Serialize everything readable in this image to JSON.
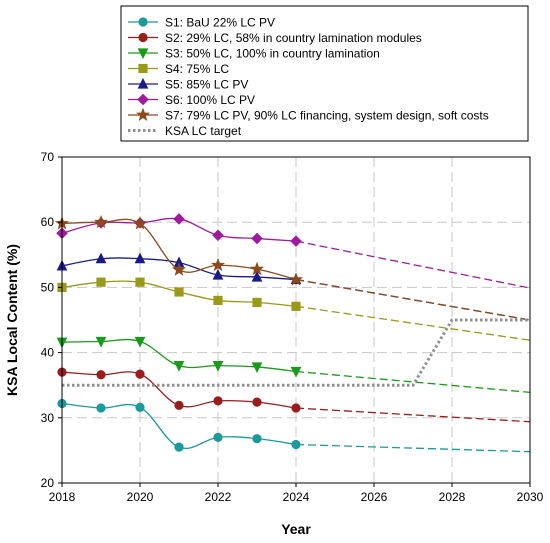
{
  "chart_data": {
    "type": "line",
    "title": "",
    "xlabel": "Year",
    "ylabel": "KSA Local Content (%)",
    "xlim": [
      2018,
      2030
    ],
    "ylim": [
      20,
      70
    ],
    "x_ticks": [
      "2018",
      "2020",
      "2022",
      "2024",
      "2026",
      "2028",
      "2030"
    ],
    "y_ticks": [
      "20",
      "30",
      "40",
      "50",
      "60",
      "70"
    ],
    "grid": true,
    "legend_position": "top",
    "series": [
      {
        "name": "S1: BaU 22% LC PV",
        "color": "#1a9a9a",
        "marker": "circle",
        "x": [
          2018,
          2019,
          2020,
          2021,
          2022,
          2023,
          2024
        ],
        "values": [
          32.2,
          31.5,
          31.6,
          25.5,
          27.0,
          26.8,
          25.9
        ],
        "projection": {
          "x": [
            2024,
            2030
          ],
          "values": [
            25.9,
            24.8
          ]
        }
      },
      {
        "name": "S2: 29% LC, 58% in country lamination modules",
        "color": "#9b1c1c",
        "marker": "circle",
        "x": [
          2018,
          2019,
          2020,
          2021,
          2022,
          2023,
          2024
        ],
        "values": [
          37.0,
          36.6,
          36.7,
          31.9,
          32.6,
          32.4,
          31.5
        ],
        "projection": {
          "x": [
            2024,
            2030
          ],
          "values": [
            31.5,
            29.4
          ]
        }
      },
      {
        "name": "S3: 50% LC, 100% in country lamination",
        "color": "#1a9a1a",
        "marker": "triangle-down",
        "x": [
          2018,
          2019,
          2020,
          2021,
          2022,
          2023,
          2024
        ],
        "values": [
          41.6,
          41.7,
          41.7,
          38.0,
          38.0,
          37.8,
          37.1
        ],
        "projection": {
          "x": [
            2024,
            2030
          ],
          "values": [
            37.1,
            33.9
          ]
        }
      },
      {
        "name": "S4: 75% LC",
        "color": "#9a9a1a",
        "marker": "square",
        "x": [
          2018,
          2019,
          2020,
          2021,
          2022,
          2023,
          2024
        ],
        "values": [
          50.0,
          50.8,
          50.8,
          49.3,
          48.0,
          47.7,
          47.1
        ],
        "projection": {
          "x": [
            2024,
            2030
          ],
          "values": [
            47.1,
            41.9
          ]
        }
      },
      {
        "name": "S5: 85% LC PV",
        "color": "#1a1a8c",
        "marker": "triangle-up",
        "x": [
          2018,
          2019,
          2020,
          2021,
          2022,
          2023,
          2024
        ],
        "values": [
          53.3,
          54.4,
          54.4,
          53.8,
          51.9,
          51.6,
          51.2
        ],
        "projection": {
          "x": [
            2024,
            2030
          ],
          "values": [
            51.2,
            45.0
          ]
        }
      },
      {
        "name": "S6: 100% LC PV",
        "color": "#a01aa0",
        "marker": "diamond",
        "x": [
          2018,
          2019,
          2020,
          2021,
          2022,
          2023,
          2024
        ],
        "values": [
          58.3,
          59.9,
          59.9,
          60.5,
          58.0,
          57.5,
          57.1
        ],
        "projection": {
          "x": [
            2024,
            2030
          ],
          "values": [
            57.1,
            49.9
          ]
        }
      },
      {
        "name": "S7: 79% LC PV, 90% LC financing, system design, soft costs",
        "color": "#8c4a1a",
        "marker": "star",
        "x": [
          2018,
          2019,
          2020,
          2021,
          2022,
          2023,
          2024
        ],
        "values": [
          59.8,
          60.0,
          59.8,
          52.7,
          53.4,
          52.8,
          51.2
        ],
        "projection": {
          "x": [
            2024,
            2030
          ],
          "values": [
            51.2,
            45.0
          ]
        }
      },
      {
        "name": "KSA LC target",
        "color": "#909090",
        "marker": "none",
        "style": "dotted",
        "x": [
          2018,
          2027,
          2028,
          2030
        ],
        "values": [
          35,
          35,
          45,
          45
        ]
      }
    ]
  }
}
